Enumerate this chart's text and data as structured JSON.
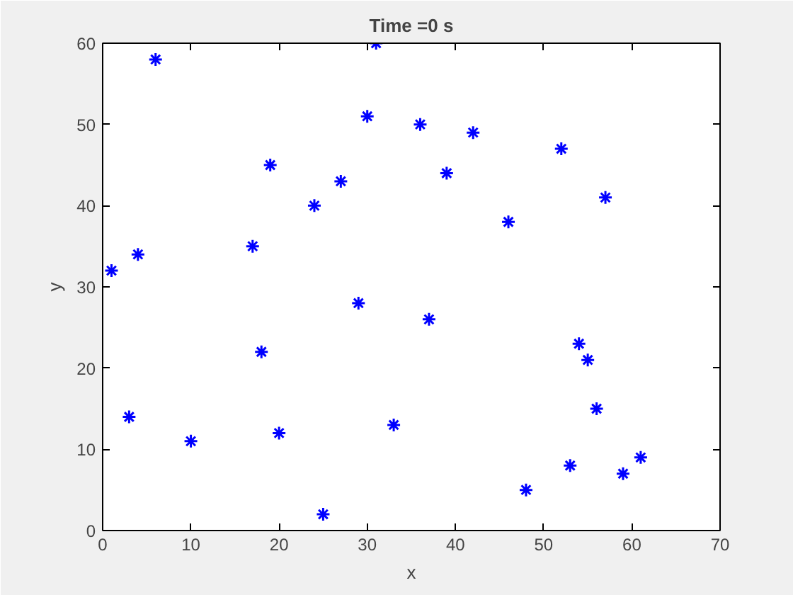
{
  "chart_data": {
    "type": "scatter",
    "title": "Time =0 s",
    "xlabel": "x",
    "ylabel": "y",
    "x": [
      1,
      3,
      4,
      6,
      10,
      17,
      18,
      19,
      20,
      24,
      25,
      27,
      29,
      30,
      31,
      33,
      36,
      37,
      39,
      42,
      46,
      48,
      52,
      53,
      54,
      55,
      56,
      57,
      59,
      61
    ],
    "series": [
      {
        "color": "#0000ff",
        "values": [
          32,
          14,
          34,
          58,
          11,
          35,
          22,
          45,
          12,
          40,
          2,
          43,
          28,
          51,
          60,
          13,
          50,
          26,
          44,
          49,
          38,
          5,
          47,
          8,
          23,
          21,
          15,
          41,
          7,
          9
        ]
      }
    ],
    "xlim": [
      0,
      70
    ],
    "xticks": [
      0,
      10,
      20,
      30,
      40,
      50,
      60,
      70
    ],
    "ylim": [
      0,
      60
    ],
    "yticks": [
      0,
      10,
      20,
      30,
      40,
      50,
      60
    ],
    "grid": false,
    "marker": "cross"
  }
}
